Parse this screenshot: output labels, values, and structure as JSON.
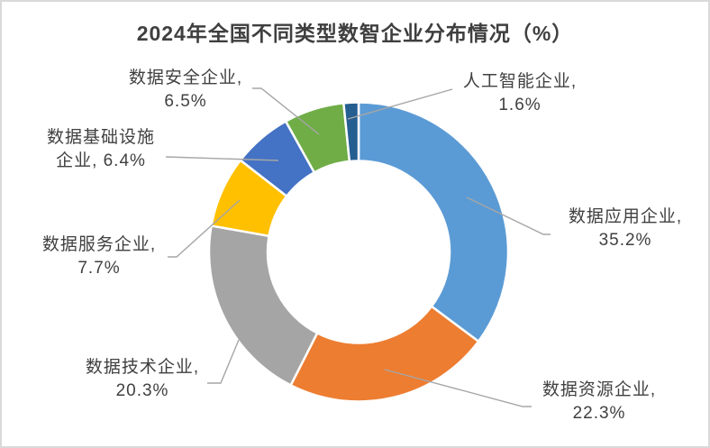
{
  "page": {
    "background": "#FFFFFF",
    "frame_border_color": "#D9D9D9"
  },
  "chart_data": {
    "type": "pie",
    "subtype": "donut",
    "title": "2024年全国不同类型数智企业分布情况（%）",
    "unit": "%",
    "direction": "clockwise",
    "start_angle_deg": 0,
    "hole_ratio": 0.61,
    "legend": "none",
    "title_color": "#3F3F3F",
    "label_color": "#404040",
    "leader_line_color": "#A6A6A6",
    "series": [
      {
        "name": "数据应用企业",
        "value": 35.2,
        "color": "#5B9BD5"
      },
      {
        "name": "数据资源企业",
        "value": 22.3,
        "color": "#ED7D31"
      },
      {
        "name": "数据技术企业",
        "value": 20.3,
        "color": "#A5A5A5"
      },
      {
        "name": "数据服务企业",
        "value": 7.7,
        "color": "#FFC000"
      },
      {
        "name": "数据基础设施企业",
        "value": 6.4,
        "color": "#4472C4"
      },
      {
        "name": "数据安全企业",
        "value": 6.5,
        "color": "#70AD47"
      },
      {
        "name": "人工智能企业",
        "value": 1.6,
        "color": "#255E91"
      }
    ],
    "labels": [
      {
        "line1": "数据应用企业,",
        "line2": "35.2%"
      },
      {
        "line1": "数据资源企业,",
        "line2": "22.3%"
      },
      {
        "line1": "数据技术企业,",
        "line2": "20.3%"
      },
      {
        "line1": "数据服务企业,",
        "line2": "7.7%"
      },
      {
        "line1": "数据基础设施",
        "line2": "企业, 6.4%"
      },
      {
        "line1": "数据安全企业,",
        "line2": "6.5%"
      },
      {
        "line1": "人工智能企业,",
        "line2": "1.6%"
      }
    ]
  }
}
